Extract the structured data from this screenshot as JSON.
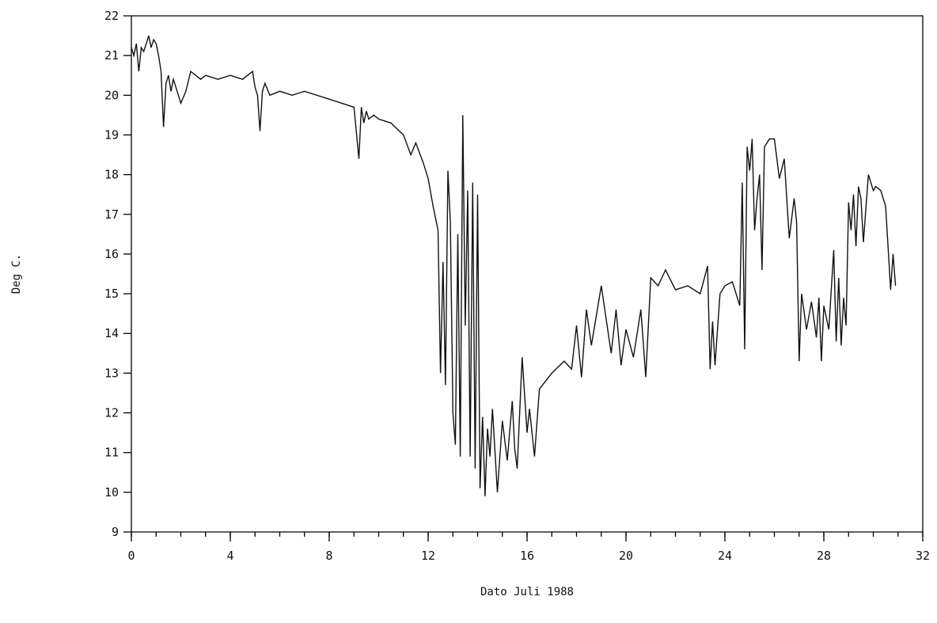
{
  "chart_data": {
    "type": "line",
    "title": "",
    "xlabel": "Dato Juli 1988",
    "ylabel": "Deg C.",
    "xlim": [
      0,
      32
    ],
    "ylim": [
      9,
      22
    ],
    "xticks": [
      0,
      4,
      8,
      12,
      16,
      20,
      24,
      28,
      32
    ],
    "xticks_minor_step": 1,
    "yticks": [
      9,
      10,
      11,
      12,
      13,
      14,
      15,
      16,
      17,
      18,
      19,
      20,
      21,
      22
    ],
    "grid": false,
    "legend": "none",
    "line_color": "#111111",
    "series": [
      {
        "x": [
          0.0,
          0.1,
          0.2,
          0.3,
          0.4,
          0.5,
          0.6,
          0.7,
          0.8,
          0.9,
          1.0,
          1.1,
          1.2,
          1.3,
          1.4,
          1.5,
          1.6,
          1.7,
          1.8,
          2.0,
          2.2,
          2.4,
          2.6,
          2.8,
          3.0,
          3.5,
          4.0,
          4.5,
          4.9,
          5.0,
          5.1,
          5.2,
          5.3,
          5.4,
          5.6,
          6.0,
          6.5,
          7.0,
          7.5,
          8.0,
          8.5,
          9.0,
          9.2,
          9.3,
          9.4,
          9.5,
          9.6,
          9.8,
          10.0,
          10.5,
          11.0,
          11.3,
          11.5,
          11.8,
          12.0,
          12.2,
          12.4,
          12.5,
          12.6,
          12.7,
          12.8,
          12.9,
          13.0,
          13.1,
          13.2,
          13.3,
          13.4,
          13.5,
          13.6,
          13.7,
          13.8,
          13.9,
          14.0,
          14.1,
          14.2,
          14.3,
          14.4,
          14.5,
          14.6,
          14.8,
          15.0,
          15.2,
          15.4,
          15.5,
          15.6,
          15.8,
          16.0,
          16.1,
          16.3,
          16.5,
          17.0,
          17.5,
          17.8,
          18.0,
          18.2,
          18.4,
          18.6,
          19.0,
          19.4,
          19.6,
          19.8,
          20.0,
          20.3,
          20.6,
          20.8,
          21.0,
          21.3,
          21.6,
          22.0,
          22.5,
          23.0,
          23.3,
          23.4,
          23.5,
          23.6,
          23.8,
          24.0,
          24.3,
          24.6,
          24.7,
          24.8,
          24.9,
          25.0,
          25.1,
          25.2,
          25.3,
          25.4,
          25.5,
          25.6,
          25.8,
          26.0,
          26.2,
          26.4,
          26.6,
          26.8,
          26.9,
          27.0,
          27.1,
          27.3,
          27.5,
          27.7,
          27.8,
          27.9,
          28.0,
          28.2,
          28.4,
          28.5,
          28.6,
          28.7,
          28.8,
          28.9,
          29.0,
          29.1,
          29.2,
          29.3,
          29.4,
          29.5,
          29.6,
          29.8,
          30.0,
          30.1,
          30.3,
          30.5,
          30.7,
          30.8,
          30.9
        ],
        "y": [
          21.2,
          21.0,
          21.3,
          20.6,
          21.2,
          21.1,
          21.3,
          21.5,
          21.2,
          21.4,
          21.3,
          21.0,
          20.6,
          19.2,
          20.3,
          20.5,
          20.1,
          20.4,
          20.2,
          19.8,
          20.1,
          20.6,
          20.5,
          20.4,
          20.5,
          20.4,
          20.5,
          20.4,
          20.6,
          20.2,
          20.0,
          19.1,
          20.1,
          20.3,
          20.0,
          20.1,
          20.0,
          20.1,
          20.0,
          19.9,
          19.8,
          19.7,
          18.4,
          19.7,
          19.3,
          19.6,
          19.4,
          19.5,
          19.4,
          19.3,
          19.0,
          18.5,
          18.8,
          18.3,
          17.9,
          17.2,
          16.6,
          13.0,
          15.8,
          12.7,
          18.1,
          16.8,
          12.0,
          11.2,
          16.5,
          10.9,
          19.5,
          14.2,
          17.6,
          10.9,
          17.8,
          10.6,
          17.5,
          10.1,
          11.9,
          9.9,
          11.6,
          10.9,
          12.1,
          10.0,
          11.8,
          10.8,
          12.3,
          11.1,
          10.6,
          13.4,
          11.5,
          12.1,
          10.9,
          12.6,
          13.0,
          13.3,
          13.1,
          14.2,
          12.9,
          14.6,
          13.7,
          15.2,
          13.5,
          14.6,
          13.2,
          14.1,
          13.4,
          14.6,
          12.9,
          15.4,
          15.2,
          15.6,
          15.1,
          15.2,
          15.0,
          15.7,
          13.1,
          14.3,
          13.2,
          15.0,
          15.2,
          15.3,
          14.7,
          17.8,
          13.6,
          18.7,
          18.1,
          18.9,
          16.6,
          17.4,
          18.0,
          15.6,
          18.7,
          18.9,
          18.9,
          17.9,
          18.4,
          16.4,
          17.4,
          16.8,
          13.3,
          15.0,
          14.1,
          14.8,
          13.9,
          14.9,
          13.3,
          14.7,
          14.1,
          16.1,
          13.8,
          15.4,
          13.7,
          14.9,
          14.2,
          17.3,
          16.6,
          17.5,
          16.2,
          17.7,
          17.4,
          16.3,
          18.0,
          17.6,
          17.7,
          17.6,
          17.2,
          15.1,
          16.0,
          15.2
        ]
      }
    ]
  }
}
